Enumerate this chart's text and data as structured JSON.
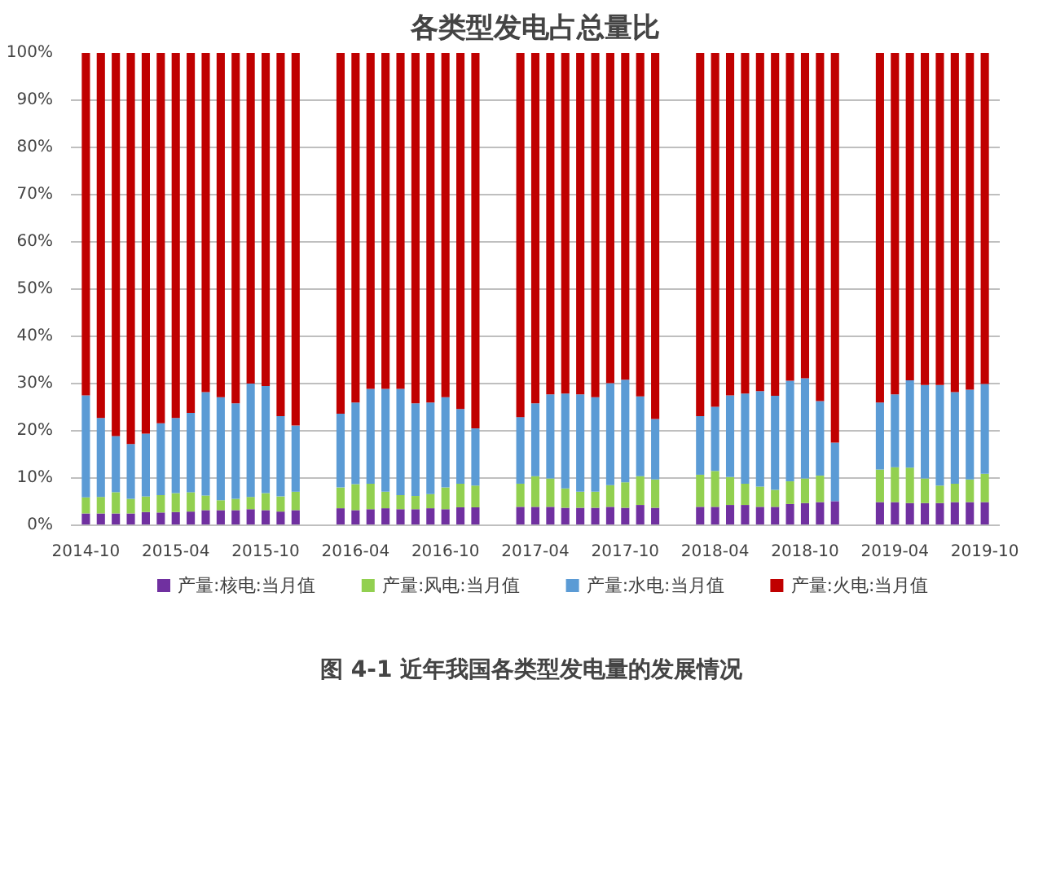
{
  "chart_data": {
    "type": "bar",
    "stacked": true,
    "title": "各类型发电占总量比",
    "categories": [
      "2014-10",
      null,
      null,
      null,
      null,
      null,
      "2015-04",
      null,
      null,
      null,
      null,
      null,
      "2015-10",
      null,
      null,
      null,
      null,
      null,
      "2016-04",
      null,
      null,
      null,
      null,
      null,
      "2016-10",
      null,
      null,
      null,
      null,
      null,
      "2017-04",
      null,
      null,
      null,
      null,
      null,
      "2017-10",
      null,
      null,
      null,
      null,
      null,
      "2018-04",
      null,
      null,
      null,
      null,
      null,
      "2018-10",
      null,
      null,
      null,
      null,
      null,
      "2019-04",
      null,
      null,
      null,
      null,
      null,
      "2019-10"
    ],
    "series": [
      {
        "name": "产量:核电:当月值",
        "color": "#7030a0",
        "values": [
          2.5,
          2.5,
          2.5,
          2.5,
          2.8,
          2.7,
          2.8,
          2.9,
          3.2,
          3.2,
          3.2,
          3.4,
          3.2,
          2.9,
          3.2,
          null,
          null,
          3.6,
          3.2,
          3.4,
          3.6,
          3.4,
          3.4,
          3.6,
          3.4,
          3.8,
          3.8,
          null,
          null,
          3.9,
          3.9,
          3.9,
          3.7,
          3.7,
          3.7,
          3.9,
          3.7,
          4.3,
          3.7,
          null,
          null,
          3.9,
          3.9,
          4.3,
          4.3,
          3.9,
          3.9,
          4.5,
          4.7,
          4.9,
          5.1,
          null,
          null,
          4.9,
          4.9,
          4.7,
          4.7,
          4.7,
          4.9,
          4.9,
          4.9
        ]
      },
      {
        "name": "产量:风电:当月值",
        "color": "#92d050",
        "values": [
          3.4,
          3.5,
          4.5,
          3.1,
          3.3,
          3.7,
          4.0,
          4.1,
          3.1,
          2.1,
          2.4,
          2.6,
          3.6,
          3.2,
          3.9,
          null,
          null,
          4.4,
          5.5,
          5.4,
          3.5,
          3.0,
          2.8,
          3.0,
          4.6,
          5.0,
          4.6,
          null,
          null,
          4.9,
          6.5,
          6.0,
          4.1,
          3.4,
          3.4,
          4.6,
          5.4,
          6.1,
          6.0,
          null,
          null,
          6.8,
          7.6,
          5.9,
          4.5,
          4.3,
          3.6,
          4.8,
          5.2,
          5.6,
          null,
          null,
          null,
          6.9,
          7.4,
          7.5,
          5.2,
          3.7,
          3.9,
          4.8,
          6.0
        ]
      },
      {
        "name": "产量:水电:当月值",
        "color": "#5b9bd5",
        "values": [
          21.6,
          16.7,
          11.9,
          11.6,
          13.3,
          15.2,
          15.9,
          16.8,
          21.9,
          21.8,
          20.2,
          24.0,
          22.7,
          17.0,
          14.0,
          null,
          null,
          15.6,
          17.3,
          20.1,
          21.8,
          22.5,
          19.6,
          19.4,
          19.1,
          15.8,
          12.1,
          null,
          null,
          14.1,
          15.4,
          17.8,
          20.1,
          20.6,
          20.0,
          21.6,
          21.7,
          16.9,
          12.8,
          null,
          null,
          12.4,
          13.6,
          17.3,
          19.1,
          20.2,
          19.9,
          21.3,
          21.2,
          15.8,
          12.4,
          null,
          null,
          14.2,
          15.4,
          18.5,
          19.8,
          21.3,
          19.4,
          19.0,
          19.0
        ]
      },
      {
        "name": "产量:火电:当月值",
        "color": "#c00000",
        "values": [
          72.5,
          77.3,
          81.1,
          82.8,
          80.6,
          78.4,
          77.3,
          76.2,
          71.8,
          72.9,
          74.2,
          70.0,
          70.5,
          76.9,
          78.9,
          null,
          null,
          76.4,
          74.0,
          71.1,
          71.1,
          71.1,
          74.2,
          74.0,
          72.9,
          75.4,
          79.5,
          null,
          null,
          77.1,
          74.2,
          72.3,
          72.1,
          72.3,
          72.9,
          69.9,
          69.2,
          72.7,
          77.5,
          null,
          null,
          76.9,
          74.9,
          72.5,
          72.1,
          71.6,
          72.6,
          69.4,
          68.9,
          73.7,
          82.5,
          null,
          null,
          74.0,
          72.3,
          69.3,
          70.3,
          70.3,
          71.8,
          71.3,
          70.1
        ]
      }
    ],
    "ylim": [
      0,
      100
    ],
    "yticks": [
      {
        "value": 0,
        "label": "0%"
      },
      {
        "value": 10,
        "label": "10%"
      },
      {
        "value": 20,
        "label": "20%"
      },
      {
        "value": 30,
        "label": "30%"
      },
      {
        "value": 40,
        "label": "40%"
      },
      {
        "value": 50,
        "label": "50%"
      },
      {
        "value": 60,
        "label": "60%"
      },
      {
        "value": 70,
        "label": "70%"
      },
      {
        "value": 80,
        "label": "80%"
      },
      {
        "value": 90,
        "label": "90%"
      },
      {
        "value": 100,
        "label": "100%"
      }
    ],
    "grid": "y",
    "legend": "bottom",
    "annotations": [
      "图 4-1  近年我国各类型发电量的发展情况"
    ]
  }
}
